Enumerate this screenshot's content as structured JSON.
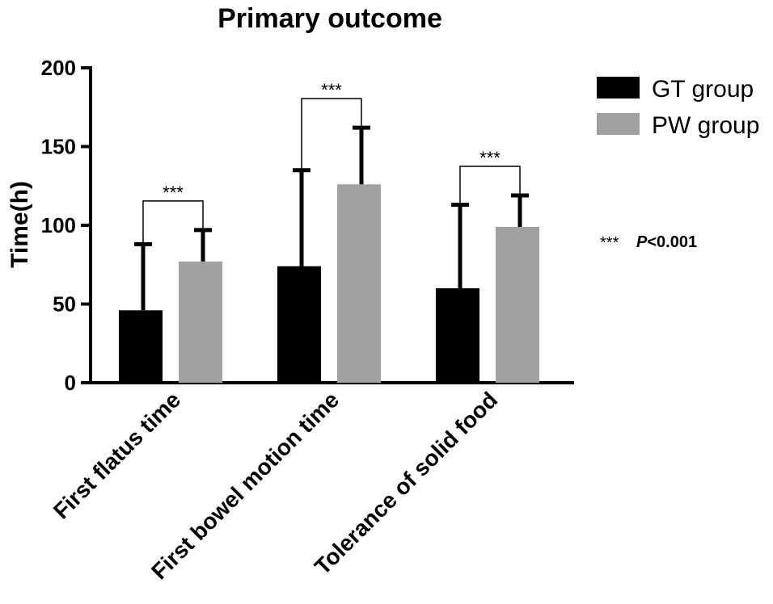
{
  "chart_data": {
    "type": "bar",
    "title": "Primary outcome",
    "xlabel": "",
    "ylabel": "Time(h)",
    "ylim": [
      0,
      200
    ],
    "yticks": [
      0,
      50,
      100,
      150,
      200
    ],
    "categories": [
      "First flatus time",
      "First bowel motion time",
      "Tolerance of solid food"
    ],
    "series": [
      {
        "name": "GT group",
        "color": "#000000",
        "values": [
          46,
          74,
          60
        ],
        "error": [
          42,
          61,
          53
        ]
      },
      {
        "name": "PW group",
        "color": "#a0a0a0",
        "values": [
          77,
          126,
          99
        ],
        "error": [
          20,
          36,
          20
        ]
      }
    ],
    "significance": [
      "***",
      "***",
      "***"
    ],
    "legend_position": "top-right",
    "grid": false,
    "annotation": {
      "stars": "***",
      "p_label": "P",
      "p_value": "<0.001"
    }
  }
}
